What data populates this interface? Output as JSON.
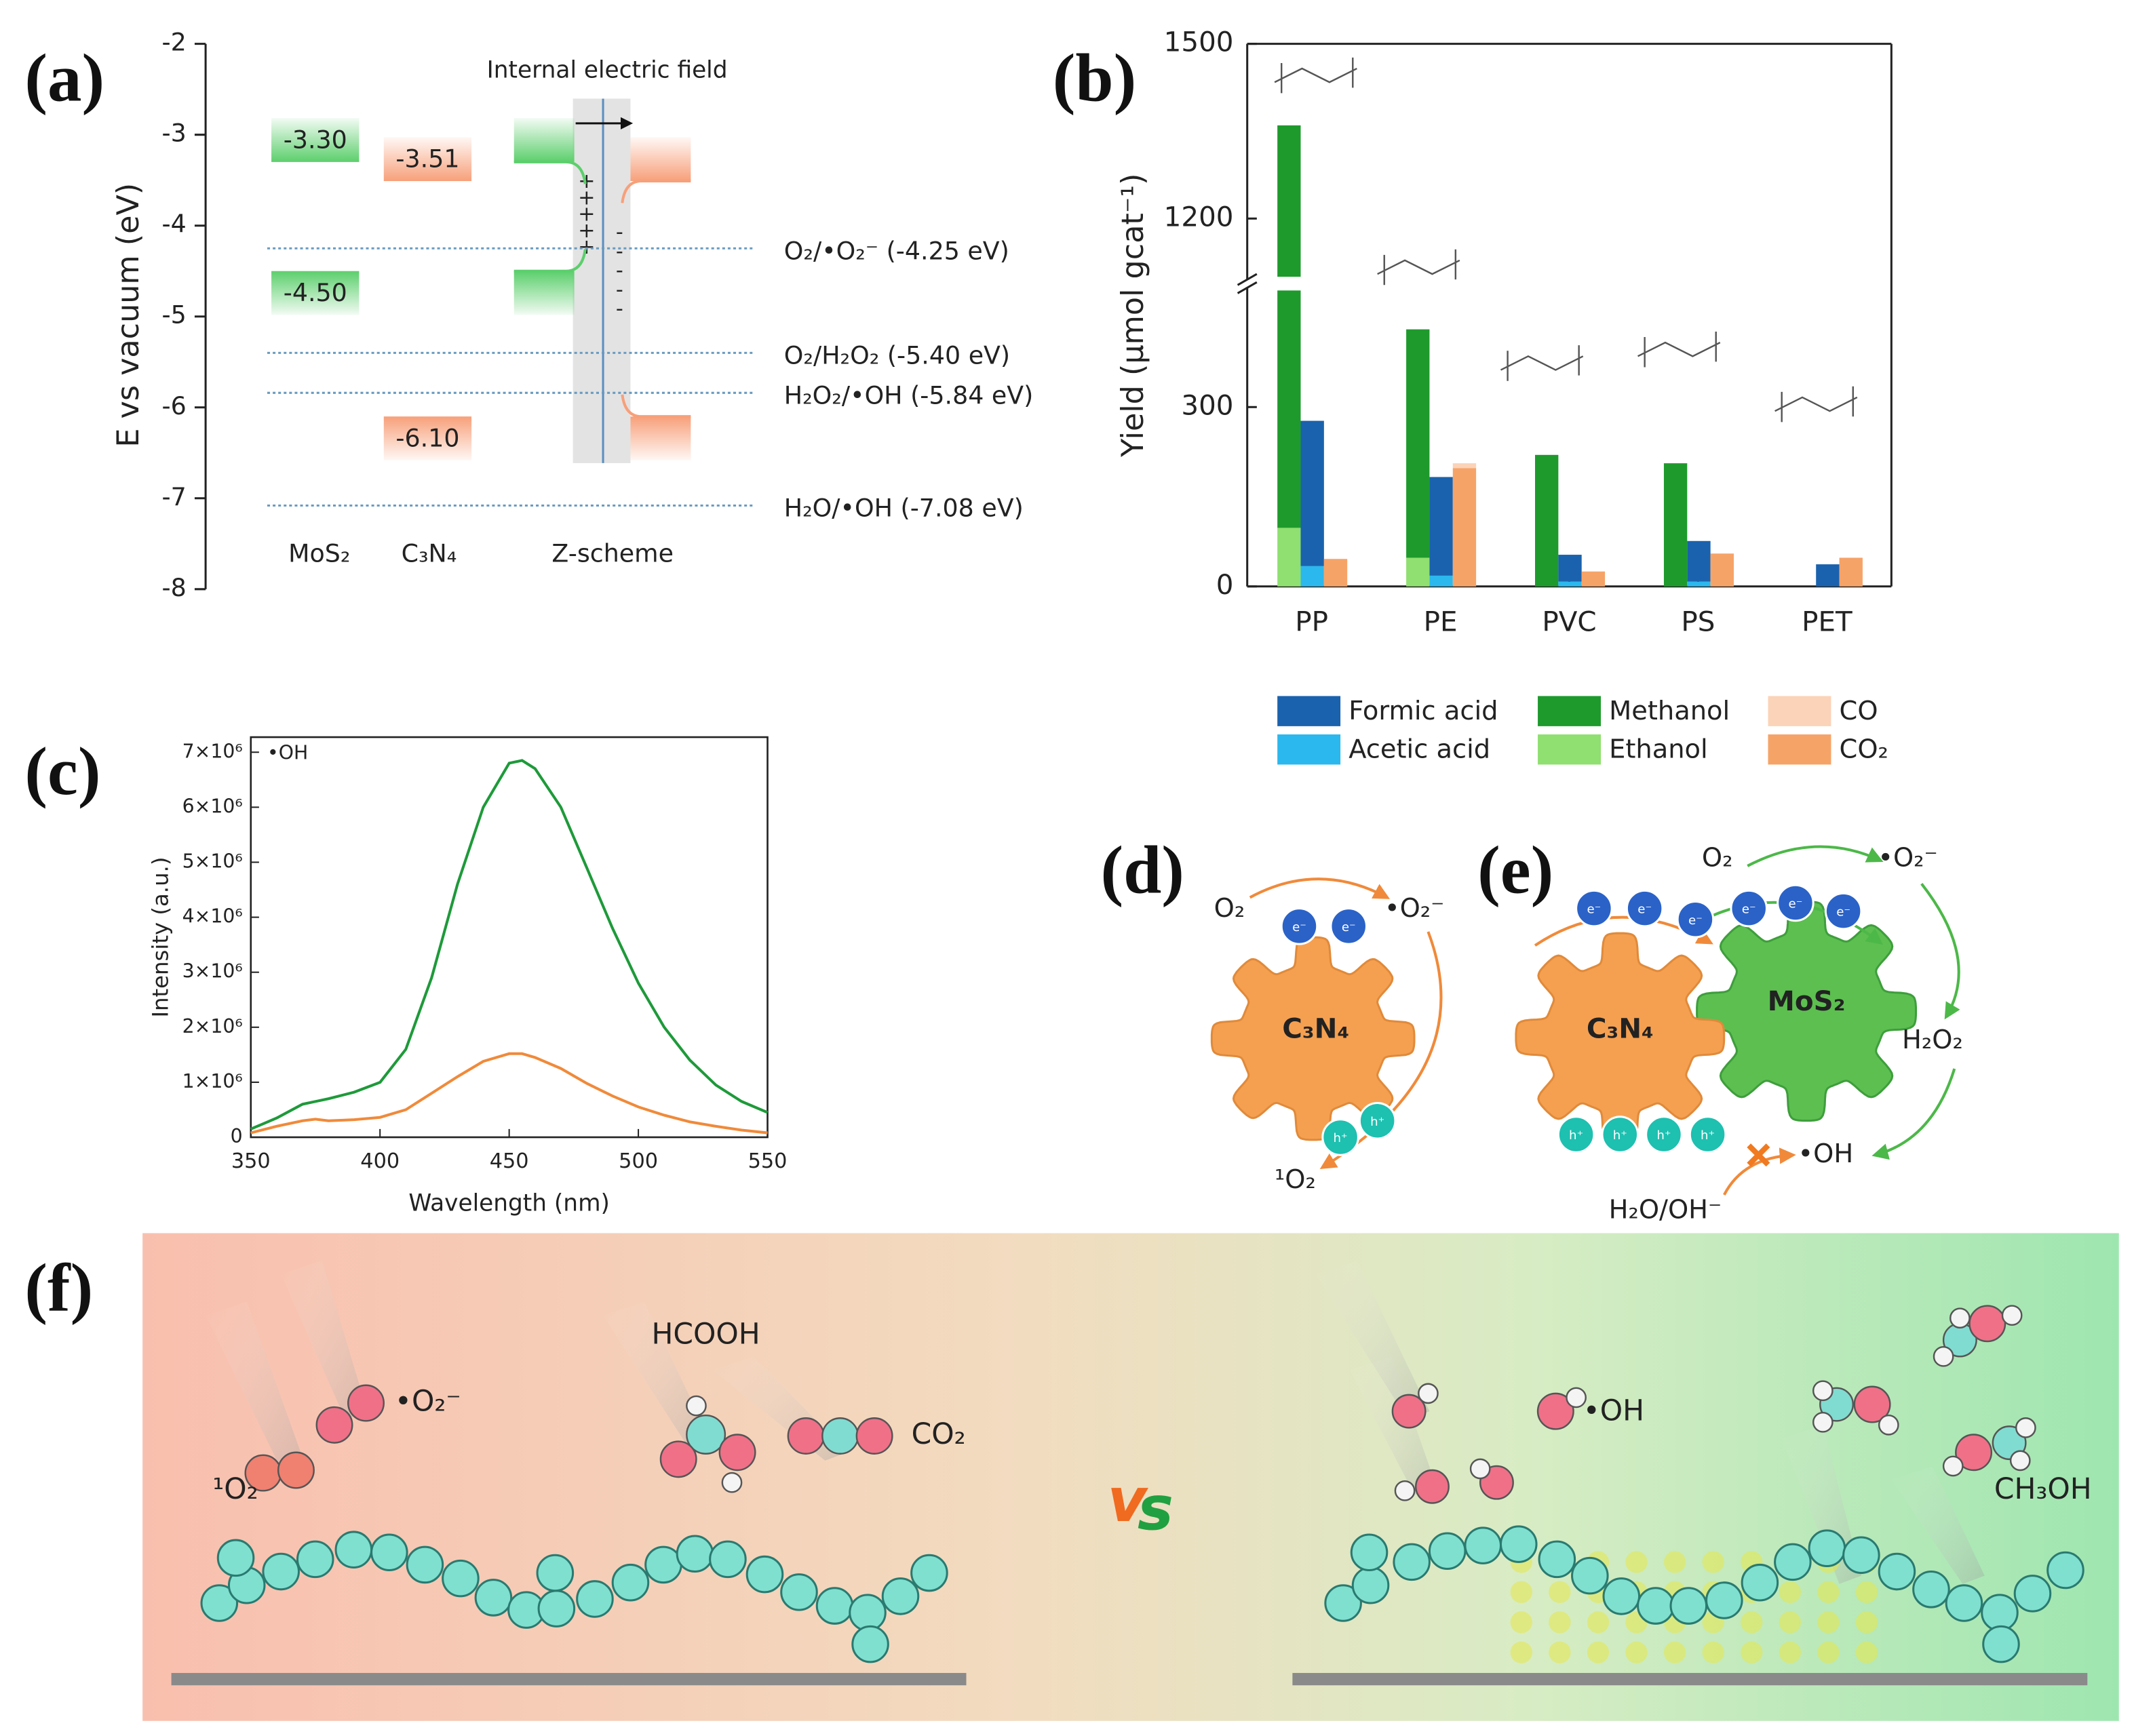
{
  "panel_labels": [
    "(a)",
    "(b)",
    "(c)",
    "(d)",
    "(e)",
    "(f)"
  ],
  "chart_data": [
    {
      "type": "energy-levels",
      "annotation": "Internal electric field",
      "y_label": "E vs vacuum (eV)",
      "categories": [
        "MoS₂",
        "C₃N₄",
        "Z-scheme"
      ],
      "ylim": [
        -8,
        -2
      ],
      "yticks": [
        -8,
        -7,
        -6,
        -5,
        -4,
        -3,
        -2
      ],
      "bands": {
        "values": [
          -3.3,
          -4.5,
          -3.51,
          -6.1
        ],
        "value_labels": [
          "-3.30",
          "-4.50",
          "-3.51",
          "-6.10"
        ],
        "colors": [
          "#5ccf6c",
          "#5ccf6c",
          "#f7a07a",
          "#f7a07a"
        ]
      },
      "redox": {
        "values": [
          -4.25,
          -5.4,
          -5.84,
          -7.08
        ],
        "labels": [
          "O₂/•O₂⁻ (-4.25 eV)",
          "O₂/H₂O₂ (-5.40 eV)",
          "H₂O₂/•OH (-5.84 eV)",
          "H₂O/•OH (-7.08 eV)"
        ],
        "color": "#6a9bc0"
      }
    },
    {
      "type": "bar",
      "y_label": "Yield (μmol gcat⁻¹)",
      "categories": [
        "PP",
        "PE",
        "PVC",
        "PS",
        "PET"
      ],
      "ylim": [
        0,
        1500
      ],
      "ybreak": [
        495,
        1100
      ],
      "yticks": [
        0,
        300,
        1200,
        1500
      ],
      "series": [
        {
          "name": "Ethanol",
          "color": "#8fe070",
          "values": [
            98,
            48,
            0,
            0,
            0
          ]
        },
        {
          "name": "Methanol",
          "color": "#1e9a2c",
          "values": [
            1262,
            382,
            220,
            206,
            0
          ]
        },
        {
          "name": "Acetic acid",
          "color": "#2bb8ee",
          "values": [
            34,
            18,
            8,
            8,
            0
          ]
        },
        {
          "name": "Formic acid",
          "color": "#1a62ad",
          "values": [
            243,
            165,
            45,
            68,
            37
          ]
        },
        {
          "name": "CO₂",
          "color": "#f6a368",
          "values": [
            46,
            198,
            25,
            55,
            48
          ]
        },
        {
          "name": "CO",
          "color": "#fbd3b8",
          "values": [
            0,
            8,
            0,
            0,
            0
          ]
        }
      ]
    },
    {
      "type": "line",
      "annotation": "•OH",
      "x_label": "Wavelength (nm)",
      "y_label": "Intensity (a.u.)",
      "x": [
        350,
        360,
        370,
        375,
        380,
        390,
        400,
        410,
        420,
        430,
        440,
        450,
        455,
        460,
        470,
        480,
        490,
        500,
        510,
        520,
        530,
        540,
        550
      ],
      "xlim": [
        350,
        550
      ],
      "xticks": [
        350,
        400,
        450,
        500,
        550
      ],
      "ylim": [
        0,
        7000000
      ],
      "yticks": [
        0,
        {
          "value": 1000000,
          "label": "1×10⁶"
        },
        {
          "value": 2000000,
          "label": "2×10⁶"
        },
        {
          "value": 3000000,
          "label": "3×10⁶"
        },
        {
          "value": 4000000,
          "label": "4×10⁶"
        },
        {
          "value": 5000000,
          "label": "5×10⁶"
        },
        {
          "value": 6000000,
          "label": "6×10⁶"
        },
        {
          "value": 7000000,
          "label": "7×10⁶"
        }
      ],
      "series": [
        {
          "color": "#1e9a3a",
          "values": [
            150000,
            350000,
            600000,
            650000,
            700000,
            820000,
            1000000,
            1600000,
            2900000,
            4600000,
            6000000,
            6800000,
            6850000,
            6700000,
            6000000,
            4900000,
            3800000,
            2800000,
            2000000,
            1400000,
            950000,
            650000,
            450000
          ]
        },
        {
          "color": "#f08a3a",
          "values": [
            80000,
            200000,
            300000,
            330000,
            300000,
            320000,
            360000,
            500000,
            800000,
            1100000,
            1380000,
            1520000,
            1520000,
            1450000,
            1250000,
            980000,
            750000,
            550000,
            400000,
            280000,
            200000,
            130000,
            80000
          ]
        }
      ]
    }
  ],
  "diagram_d": {
    "gear_label": "C₃N₄",
    "oxygen": "O₂",
    "superoxide": "•O₂⁻",
    "singlet_oxygen": "¹O₂",
    "electrons": [
      "e⁻",
      "e⁻"
    ],
    "holes": [
      "h⁺",
      "h⁺"
    ]
  },
  "diagram_e": {
    "gear_labels": [
      "C₃N₄",
      "MoS₂"
    ],
    "oxygen": "O₂",
    "superoxide": "•O₂⁻",
    "peroxide": "H₂O₂",
    "hydroxyl": "•OH",
    "water": "H₂O/OH⁻",
    "electrons": [
      "e⁻",
      "e⁻",
      "e⁻",
      "e⁻",
      "e⁻",
      "e⁻"
    ],
    "holes": [
      "h⁺",
      "h⁺",
      "h⁺",
      "h⁺"
    ]
  },
  "diagram_f": {
    "labels": [
      "¹O₂",
      "•O₂⁻",
      "HCOOH",
      "CO₂",
      "•OH",
      "CH₃OH"
    ],
    "versus": [
      "v",
      "s"
    ]
  }
}
